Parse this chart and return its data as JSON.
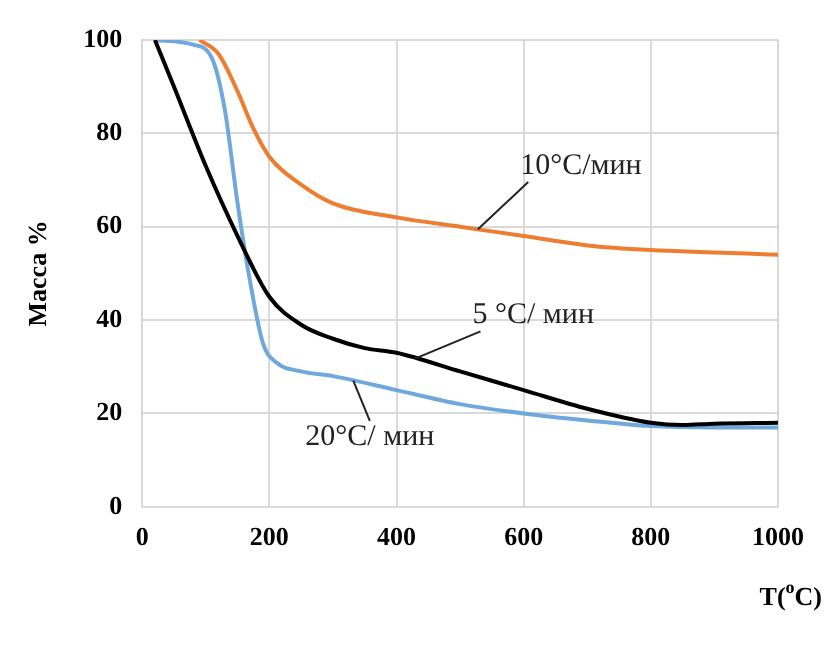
{
  "chart_data": {
    "type": "line",
    "ylabel": "Масса %",
    "xlabel": "T($^{o}$C)",
    "xlim": [
      0,
      1000
    ],
    "xticks": [
      0,
      200,
      400,
      600,
      800,
      1000
    ],
    "ylim": [
      0,
      100
    ],
    "yticks": [
      0,
      20,
      40,
      60,
      80,
      100
    ],
    "grid": true,
    "marker": "none",
    "line_style": "solid",
    "series": [
      {
        "name": "10°C/мин",
        "color": "#ed7d31",
        "x": [
          90,
          120,
          150,
          175,
          200,
          250,
          300,
          400,
          500,
          600,
          700,
          800,
          900,
          1000
        ],
        "values": [
          100,
          97,
          89,
          81,
          75,
          69,
          65,
          62,
          60,
          58,
          56,
          55,
          54.5,
          54
        ]
      },
      {
        "name": "5 °C/ мин",
        "color": "#000000",
        "x": [
          20,
          50,
          100,
          150,
          200,
          250,
          300,
          350,
          400,
          500,
          600,
          700,
          800,
          850,
          900,
          1000
        ],
        "values": [
          100,
          90,
          73,
          58,
          45,
          39,
          36,
          34,
          33,
          29,
          25,
          21,
          18,
          17.5,
          17.8,
          18
        ]
      },
      {
        "name": "20°C/ мин",
        "color": "#6fa8dc",
        "x": [
          20,
          80,
          110,
          130,
          150,
          170,
          190,
          210,
          250,
          300,
          400,
          500,
          600,
          700,
          800,
          900,
          1000
        ],
        "values": [
          100,
          99,
          96,
          85,
          65,
          48,
          35,
          31,
          29,
          28,
          25,
          22,
          20,
          18.5,
          17.3,
          17,
          17
        ]
      }
    ]
  }
}
